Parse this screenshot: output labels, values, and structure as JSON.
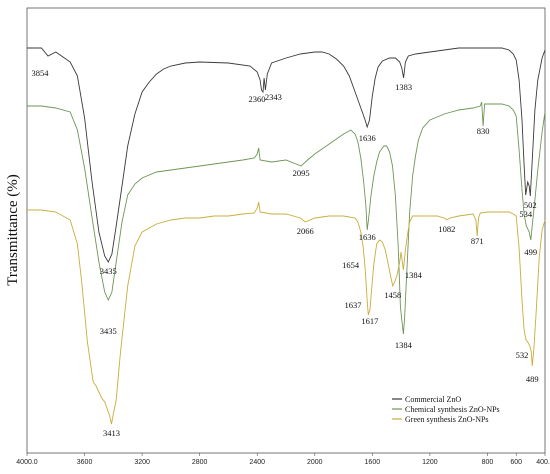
{
  "chart_data": {
    "type": "line",
    "ylabel": "Transmittance (%)",
    "xlabel": "",
    "xlim": [
      4000,
      400
    ],
    "x_reversed": true,
    "grid": false,
    "legend_placement": "bottom-right",
    "x_ticks": [
      "4000.0",
      "3600",
      "3200",
      "2800",
      "2400",
      "2000",
      "1600",
      "1200",
      "800",
      "600",
      "400.0"
    ],
    "series": [
      {
        "name": "Commercial ZnO",
        "color": "#3a3a3a",
        "points": [
          [
            4000,
            48
          ],
          [
            3900,
            48
          ],
          [
            3854,
            56
          ],
          [
            3800,
            52
          ],
          [
            3750,
            57
          ],
          [
            3700,
            62
          ],
          [
            3650,
            76
          ],
          [
            3600,
            118
          ],
          [
            3550,
            180
          ],
          [
            3500,
            232
          ],
          [
            3460,
            256
          ],
          [
            3435,
            262
          ],
          [
            3410,
            254
          ],
          [
            3380,
            226
          ],
          [
            3340,
            186
          ],
          [
            3300,
            146
          ],
          [
            3250,
            114
          ],
          [
            3200,
            92
          ],
          [
            3150,
            82
          ],
          [
            3100,
            74
          ],
          [
            3050,
            69
          ],
          [
            3000,
            66
          ],
          [
            2900,
            63
          ],
          [
            2800,
            62
          ],
          [
            2600,
            63
          ],
          [
            2450,
            66
          ],
          [
            2400,
            72
          ],
          [
            2380,
            80
          ],
          [
            2370,
            90
          ],
          [
            2360,
            92
          ],
          [
            2352,
            78
          ],
          [
            2343,
            90
          ],
          [
            2330,
            74
          ],
          [
            2300,
            63
          ],
          [
            2200,
            58
          ],
          [
            2100,
            54
          ],
          [
            2000,
            52
          ],
          [
            1950,
            52
          ],
          [
            1900,
            54
          ],
          [
            1850,
            59
          ],
          [
            1800,
            66
          ],
          [
            1760,
            76
          ],
          [
            1720,
            92
          ],
          [
            1690,
            104
          ],
          [
            1665,
            114
          ],
          [
            1650,
            120
          ],
          [
            1636,
            127
          ],
          [
            1620,
            120
          ],
          [
            1600,
            96
          ],
          [
            1580,
            78
          ],
          [
            1560,
            67
          ],
          [
            1530,
            61
          ],
          [
            1480,
            58
          ],
          [
            1440,
            58
          ],
          [
            1410,
            62
          ],
          [
            1395,
            68
          ],
          [
            1383,
            78
          ],
          [
            1370,
            62
          ],
          [
            1350,
            56
          ],
          [
            1300,
            54
          ],
          [
            1200,
            52
          ],
          [
            1100,
            50
          ],
          [
            1000,
            48
          ],
          [
            900,
            48
          ],
          [
            800,
            48
          ],
          [
            700,
            48
          ],
          [
            650,
            50
          ],
          [
            620,
            54
          ],
          [
            600,
            60
          ],
          [
            580,
            80
          ],
          [
            560,
            120
          ],
          [
            545,
            165
          ],
          [
            534,
            195
          ],
          [
            520,
            182
          ],
          [
            510,
            186
          ],
          [
            502,
            196
          ],
          [
            490,
            165
          ],
          [
            470,
            110
          ],
          [
            450,
            80
          ],
          [
            420,
            58
          ],
          [
            400,
            50
          ]
        ]
      },
      {
        "name": "Chemical synthesis ZnO-NPs",
        "color": "#6e9656",
        "points": [
          [
            4000,
            106
          ],
          [
            3900,
            106
          ],
          [
            3800,
            108
          ],
          [
            3700,
            112
          ],
          [
            3650,
            130
          ],
          [
            3600,
            168
          ],
          [
            3550,
            216
          ],
          [
            3500,
            262
          ],
          [
            3460,
            292
          ],
          [
            3435,
            300
          ],
          [
            3410,
            292
          ],
          [
            3380,
            262
          ],
          [
            3340,
            222
          ],
          [
            3300,
            195
          ],
          [
            3250,
            184
          ],
          [
            3200,
            178
          ],
          [
            3100,
            172
          ],
          [
            3000,
            170
          ],
          [
            2900,
            168
          ],
          [
            2800,
            166
          ],
          [
            2700,
            164
          ],
          [
            2600,
            162
          ],
          [
            2500,
            160
          ],
          [
            2420,
            158
          ],
          [
            2400,
            154
          ],
          [
            2390,
            148
          ],
          [
            2380,
            160
          ],
          [
            2300,
            162
          ],
          [
            2200,
            160
          ],
          [
            2095,
            166
          ],
          [
            2050,
            160
          ],
          [
            2000,
            154
          ],
          [
            1900,
            144
          ],
          [
            1800,
            134
          ],
          [
            1750,
            130
          ],
          [
            1720,
            134
          ],
          [
            1700,
            142
          ],
          [
            1680,
            158
          ],
          [
            1660,
            182
          ],
          [
            1645,
            206
          ],
          [
            1636,
            230
          ],
          [
            1625,
            218
          ],
          [
            1610,
            196
          ],
          [
            1590,
            176
          ],
          [
            1570,
            162
          ],
          [
            1550,
            152
          ],
          [
            1520,
            146
          ],
          [
            1500,
            146
          ],
          [
            1480,
            152
          ],
          [
            1460,
            166
          ],
          [
            1440,
            196
          ],
          [
            1420,
            246
          ],
          [
            1405,
            306
          ],
          [
            1395,
            320
          ],
          [
            1384,
            334
          ],
          [
            1375,
            316
          ],
          [
            1360,
            270
          ],
          [
            1340,
            212
          ],
          [
            1320,
            176
          ],
          [
            1300,
            156
          ],
          [
            1280,
            140
          ],
          [
            1250,
            128
          ],
          [
            1200,
            120
          ],
          [
            1100,
            114
          ],
          [
            1000,
            110
          ],
          [
            900,
            108
          ],
          [
            850,
            106
          ],
          [
            840,
            102
          ],
          [
            830,
            126
          ],
          [
            820,
            104
          ],
          [
            800,
            104
          ],
          [
            700,
            104
          ],
          [
            650,
            106
          ],
          [
            620,
            110
          ],
          [
            600,
            116
          ],
          [
            580,
            150
          ],
          [
            560,
            190
          ],
          [
            545,
            214
          ],
          [
            530,
            226
          ],
          [
            510,
            232
          ],
          [
            499,
            240
          ],
          [
            490,
            228
          ],
          [
            470,
            200
          ],
          [
            450,
            170
          ],
          [
            420,
            132
          ],
          [
            400,
            112
          ]
        ]
      },
      {
        "name": "Green synthesis ZnO-NPs",
        "color": "#c9ad3c",
        "points": [
          [
            4000,
            210
          ],
          [
            3900,
            210
          ],
          [
            3800,
            212
          ],
          [
            3700,
            220
          ],
          [
            3650,
            244
          ],
          [
            3620,
            282
          ],
          [
            3580,
            342
          ],
          [
            3540,
            382
          ],
          [
            3520,
            386
          ],
          [
            3500,
            392
          ],
          [
            3480,
            398
          ],
          [
            3460,
            402
          ],
          [
            3440,
            410
          ],
          [
            3425,
            416
          ],
          [
            3413,
            424
          ],
          [
            3400,
            414
          ],
          [
            3380,
            400
          ],
          [
            3350,
            352
          ],
          [
            3300,
            286
          ],
          [
            3250,
            246
          ],
          [
            3200,
            232
          ],
          [
            3100,
            224
          ],
          [
            3000,
            220
          ],
          [
            2900,
            218
          ],
          [
            2800,
            218
          ],
          [
            2700,
            216
          ],
          [
            2600,
            216
          ],
          [
            2500,
            214
          ],
          [
            2420,
            213
          ],
          [
            2400,
            208
          ],
          [
            2390,
            202
          ],
          [
            2380,
            212
          ],
          [
            2300,
            214
          ],
          [
            2200,
            214
          ],
          [
            2100,
            218
          ],
          [
            2066,
            222
          ],
          [
            2000,
            218
          ],
          [
            1900,
            216
          ],
          [
            1800,
            216
          ],
          [
            1720,
            218
          ],
          [
            1700,
            222
          ],
          [
            1680,
            232
          ],
          [
            1665,
            246
          ],
          [
            1654,
            262
          ],
          [
            1645,
            280
          ],
          [
            1637,
            298
          ],
          [
            1628,
            315
          ],
          [
            1617,
            310
          ],
          [
            1605,
            290
          ],
          [
            1590,
            264
          ],
          [
            1570,
            244
          ],
          [
            1550,
            240
          ],
          [
            1530,
            242
          ],
          [
            1510,
            250
          ],
          [
            1490,
            264
          ],
          [
            1470,
            278
          ],
          [
            1458,
            286
          ],
          [
            1445,
            282
          ],
          [
            1430,
            276
          ],
          [
            1412,
            264
          ],
          [
            1400,
            252
          ],
          [
            1384,
            270
          ],
          [
            1370,
            250
          ],
          [
            1355,
            234
          ],
          [
            1340,
            222
          ],
          [
            1320,
            216
          ],
          [
            1300,
            216
          ],
          [
            1250,
            216
          ],
          [
            1200,
            216
          ],
          [
            1150,
            216
          ],
          [
            1100,
            218
          ],
          [
            1082,
            220
          ],
          [
            1060,
            218
          ],
          [
            1000,
            216
          ],
          [
            950,
            215
          ],
          [
            900,
            214
          ],
          [
            880,
            220
          ],
          [
            871,
            236
          ],
          [
            862,
            218
          ],
          [
            850,
            213
          ],
          [
            800,
            212
          ],
          [
            700,
            212
          ],
          [
            650,
            212
          ],
          [
            620,
            214
          ],
          [
            600,
            216
          ],
          [
            580,
            248
          ],
          [
            560,
            300
          ],
          [
            545,
            330
          ],
          [
            532,
            340
          ],
          [
            520,
            342
          ],
          [
            505,
            346
          ],
          [
            495,
            352
          ],
          [
            489,
            366
          ],
          [
            478,
            350
          ],
          [
            460,
            308
          ],
          [
            440,
            258
          ],
          [
            420,
            230
          ],
          [
            400,
            220
          ]
        ]
      }
    ],
    "annotations": [
      {
        "text": "3854",
        "series": 0,
        "x": 3854
      },
      {
        "text": "2360",
        "series": 0,
        "x": 2360
      },
      {
        "text": "2343",
        "series": 0,
        "x": 2343
      },
      {
        "text": "1636",
        "series": 0,
        "x": 1636
      },
      {
        "text": "1383",
        "series": 0,
        "x": 1383
      },
      {
        "text": "502",
        "series": 0,
        "x": 502
      },
      {
        "text": "534",
        "series": 0,
        "x": 534
      },
      {
        "text": "3435",
        "series": 0,
        "x": 3435
      },
      {
        "text": "2095",
        "series": 1,
        "x": 2095
      },
      {
        "text": "830",
        "series": 1,
        "x": 830
      },
      {
        "text": "1636",
        "series": 1,
        "x": 1636
      },
      {
        "text": "499",
        "series": 1,
        "x": 499
      },
      {
        "text": "3435",
        "series": 1,
        "x": 3435
      },
      {
        "text": "1384",
        "series": 1,
        "x": 1384
      },
      {
        "text": "2066",
        "series": 2,
        "x": 2066
      },
      {
        "text": "1082",
        "series": 2,
        "x": 1082
      },
      {
        "text": "871",
        "series": 2,
        "x": 871
      },
      {
        "text": "1654",
        "series": 2,
        "x": 1654
      },
      {
        "text": "1637",
        "series": 2,
        "x": 1637
      },
      {
        "text": "1617",
        "series": 2,
        "x": 1617
      },
      {
        "text": "1458",
        "series": 2,
        "x": 1458
      },
      {
        "text": "1384",
        "series": 2,
        "x": 1384
      },
      {
        "text": "532",
        "series": 2,
        "x": 532
      },
      {
        "text": "489",
        "series": 2,
        "x": 489
      },
      {
        "text": "3413",
        "series": 2,
        "x": 3413
      }
    ]
  }
}
